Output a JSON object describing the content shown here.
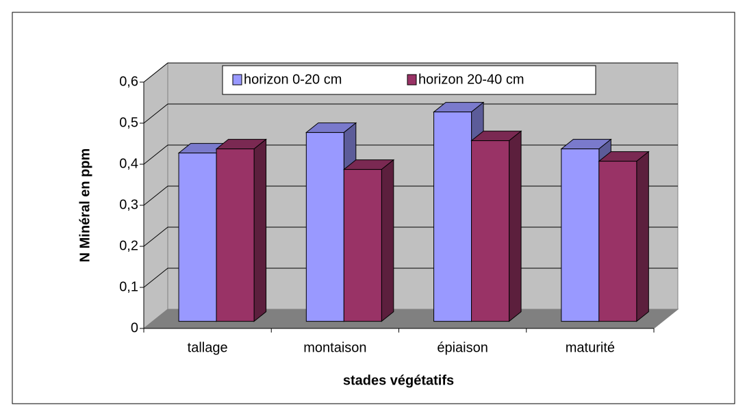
{
  "chart_data": {
    "type": "bar3d",
    "categories": [
      "tallage",
      "montaison",
      "épiaison",
      "maturité"
    ],
    "series": [
      {
        "name": "horizon 0-20 cm",
        "color": "#9999ff",
        "values": [
          0.41,
          0.46,
          0.51,
          0.42
        ]
      },
      {
        "name": "horizon 20-40 cm",
        "color": "#993366",
        "values": [
          0.42,
          0.37,
          0.44,
          0.39
        ]
      }
    ],
    "x_label": "stades végétatifs",
    "y_label": "N Minéral en ppm",
    "ylim": [
      0,
      0.6
    ],
    "yticks": [
      0,
      {
        "value": 0.1,
        "label": "0,1"
      },
      {
        "value": 0.2,
        "label": "0,2"
      },
      {
        "value": 0.3,
        "label": "0,3"
      },
      {
        "value": 0.4,
        "label": "0,4"
      },
      {
        "value": 0.5,
        "label": "0,5"
      },
      {
        "value": 0.6,
        "label": "0,6"
      }
    ],
    "grid": true,
    "legend": "top"
  }
}
